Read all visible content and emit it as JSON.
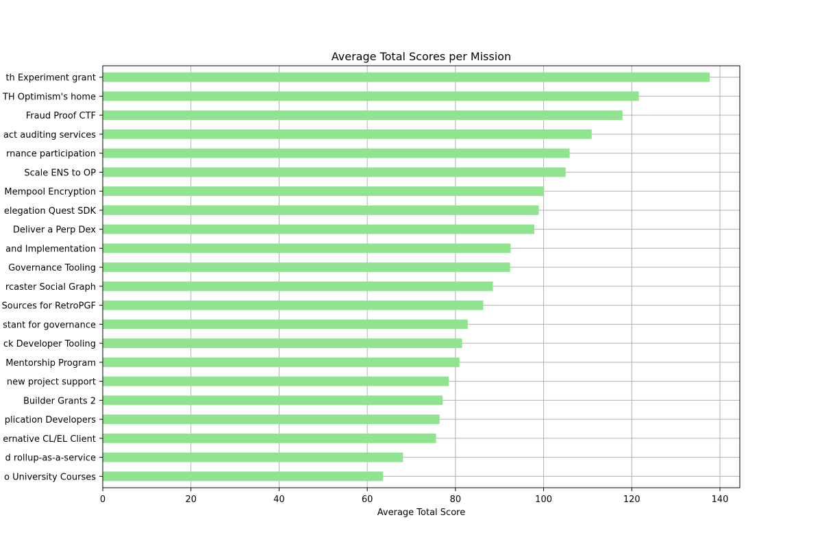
{
  "chart_data": {
    "type": "bar",
    "orientation": "horizontal",
    "title": "Average Total Scores per Mission",
    "xlabel": "Average Total Score",
    "ylabel": "",
    "xlim": [
      0,
      144.5
    ],
    "xticks": [
      0,
      20,
      40,
      60,
      80,
      100,
      120,
      140
    ],
    "grid": true,
    "bar_color": "#90e490",
    "categories": [
      "th Experiment grant",
      "TH Optimism's home",
      "Fraud Proof CTF",
      "act auditing services",
      "rnance participation",
      "Scale ENS to OP",
      "Mempool Encryption",
      "elegation Quest SDK",
      "Deliver a Perp Dex",
      "and Implementation",
      "Governance Tooling",
      "rcaster Social Graph",
      "Sources for RetroPGF",
      "stant for governance",
      "ck Developer Tooling",
      "Mentorship Program",
      "new project support",
      "Builder Grants 2",
      "plication Developers",
      "ernative CL/EL Client",
      "d rollup-as-a-service",
      "o University Courses"
    ],
    "values": [
      137.7,
      121.6,
      117.9,
      110.9,
      105.9,
      105.0,
      100.1,
      98.9,
      97.9,
      92.5,
      92.4,
      88.5,
      86.3,
      82.8,
      81.5,
      80.9,
      78.5,
      77.1,
      76.4,
      75.6,
      68.1,
      63.6
    ]
  }
}
